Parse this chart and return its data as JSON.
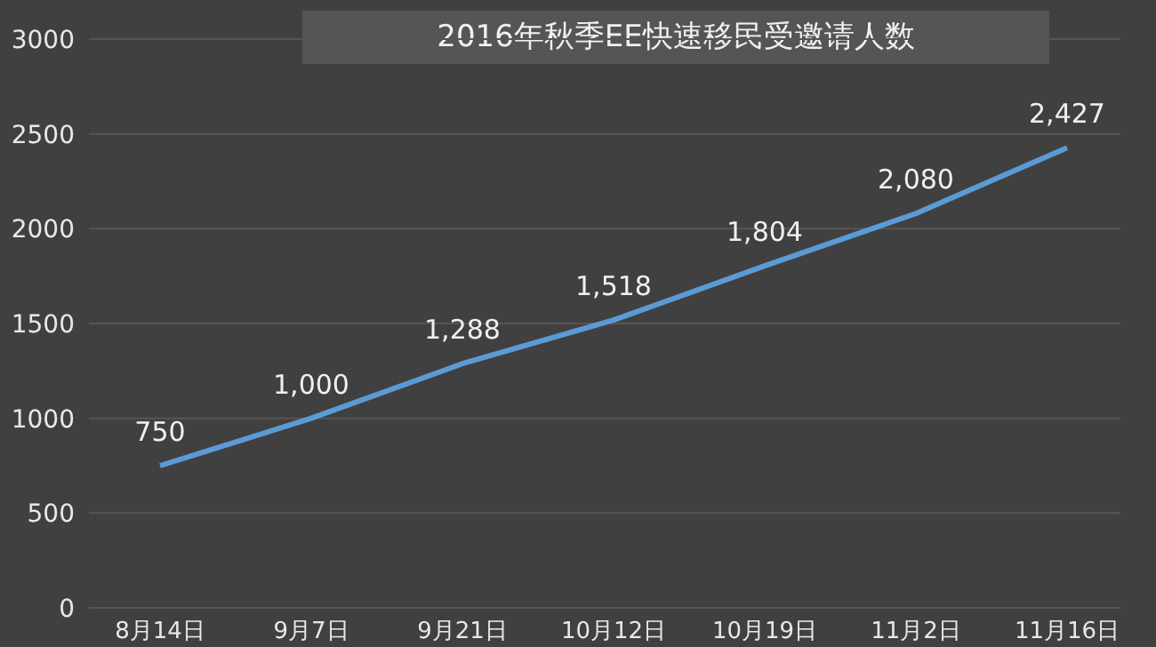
{
  "chart_data": {
    "type": "line",
    "title": "2016年秋季EE快速移民受邀请人数",
    "categories": [
      "8月14日",
      "9月7日",
      "9月21日",
      "10月12日",
      "10月19日",
      "11月2日",
      "11月16日"
    ],
    "series": [
      {
        "color": "#5b9bd5",
        "values": [
          750,
          1000,
          1288,
          1518,
          1804,
          2080,
          2427
        ]
      }
    ],
    "value_labels": [
      "750",
      "1,000",
      "1,288",
      "1,518",
      "1,804",
      "2,080",
      "2,427"
    ],
    "ylim": [
      0,
      3000
    ],
    "yticks": [
      0,
      500,
      1000,
      1500,
      2000,
      2500,
      3000
    ],
    "grid": "y",
    "marker": "none",
    "line_style": "solid"
  }
}
